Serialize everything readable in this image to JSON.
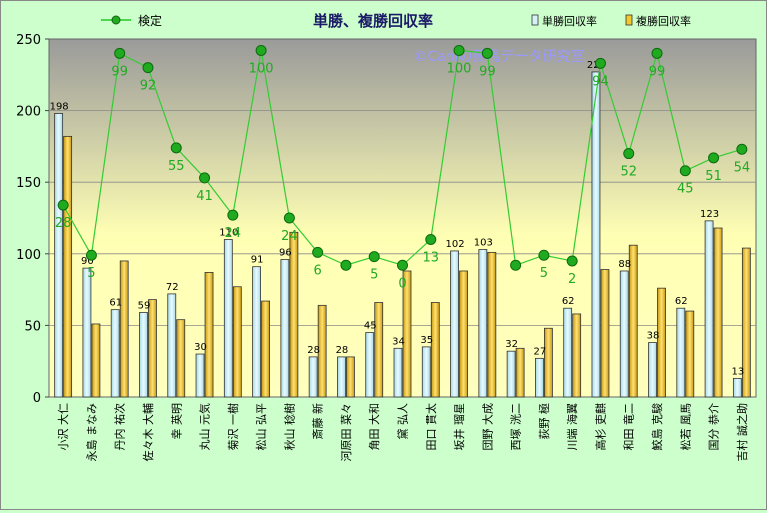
{
  "chart_data": {
    "type": "bar",
    "title": "単勝、複勝回収率",
    "watermark": "©Caniの競馬データ研究室",
    "ylim": [
      0,
      250
    ],
    "yticks": [
      0,
      50,
      100,
      150,
      200,
      250
    ],
    "grid": true,
    "legend_placement": "top",
    "categories": [
      "小沢 大仁",
      "永島 まなみ",
      "丹内 祐次",
      "佐々木 大輔",
      "幸 英明",
      "丸山 元気",
      "菊沢 一樹",
      "松山 弘平",
      "秋山 稔樹",
      "斎藤 新",
      "河原田 菜々",
      "角田 大和",
      "黛 弘人",
      "田口 貫太",
      "坂井 瑠星",
      "団野 大成",
      "西塚 洸二",
      "荻野 極",
      "川端 海翼",
      "高杉 吏麒",
      "和田 竜二",
      "鮫島 克駿",
      "松若 風馬",
      "国分 恭介",
      "吉村 誠之助"
    ],
    "series": [
      {
        "name": "単勝回収率",
        "kind": "bar",
        "color": "#d7f2f6",
        "values": [
          198,
          90,
          61,
          59,
          72,
          30,
          110,
          91,
          96,
          28,
          28,
          45,
          34,
          35,
          102,
          103,
          32,
          27,
          62,
          227,
          88,
          38,
          62,
          123,
          13
        ],
        "labels": [
          "198",
          "90",
          "61",
          "59",
          "72",
          "30",
          "110",
          "91",
          "96",
          "28",
          "28",
          "45",
          "34",
          "35",
          "102",
          "103",
          "32",
          "27",
          "62",
          "227",
          "88",
          "38",
          "62",
          "123",
          "13"
        ]
      },
      {
        "name": "複勝回収率",
        "kind": "bar",
        "color": "#f2c82a",
        "values": [
          182,
          51,
          95,
          68,
          54,
          87,
          77,
          67,
          115,
          64,
          28,
          66,
          88,
          66,
          88,
          101,
          34,
          48,
          58,
          89,
          106,
          76,
          60,
          118,
          104
        ]
      },
      {
        "name": "検定",
        "kind": "line",
        "color": "#22cc22",
        "values": [
          134,
          99,
          240,
          230,
          174,
          153,
          127,
          242,
          125,
          101,
          92,
          98,
          92,
          110,
          242,
          240,
          92,
          99,
          95,
          233,
          170,
          240,
          158,
          167,
          173
        ],
        "labels": [
          "28",
          "5",
          "99",
          "92",
          "55",
          "41",
          "24",
          "100",
          "24",
          "6",
          "",
          "5",
          "0",
          "13",
          "100",
          "99",
          "",
          "5",
          "2",
          "94",
          "52",
          "99",
          "45",
          "51",
          "54"
        ]
      }
    ]
  }
}
